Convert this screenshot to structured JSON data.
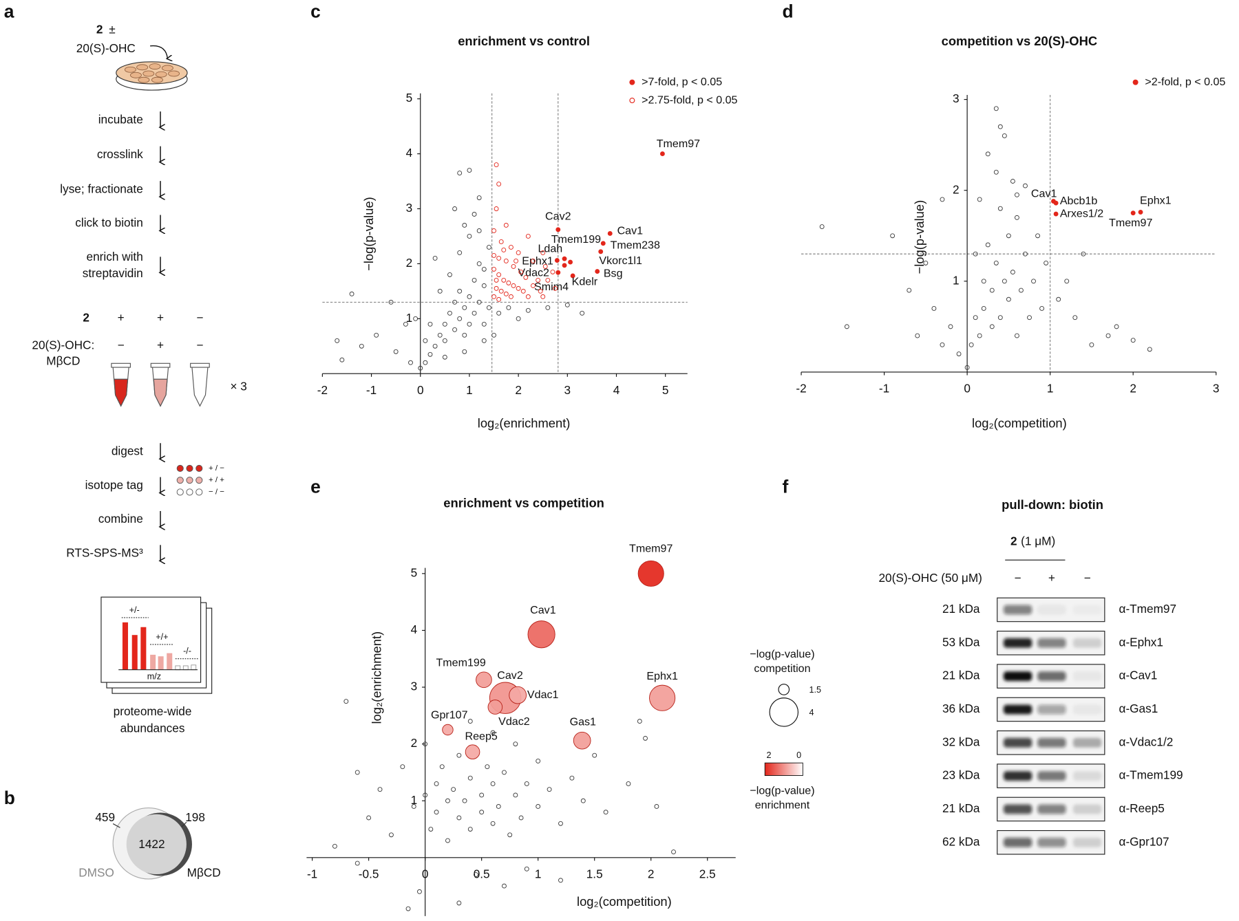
{
  "panel_labels": [
    "a",
    "b",
    "c",
    "d",
    "e",
    "f"
  ],
  "workflow": {
    "compound": "2",
    "plus_minus": "±",
    "treatment": "20(S)-OHC",
    "steps": [
      "incubate",
      "crosslink",
      "lyse; fractionate",
      "click to biotin",
      "enrich with",
      "streptavidin"
    ],
    "conditions": {
      "rows": [
        {
          "label": "2",
          "signs": [
            "+",
            "+",
            "−"
          ]
        },
        {
          "label": [
            "20(S)-OHC:",
            "MβCD"
          ],
          "signs": [
            "−",
            "+",
            "−"
          ]
        }
      ],
      "replicates": "× 3"
    },
    "steps2": [
      "digest",
      "isotope tag",
      "combine",
      "RTS-SPS-MS³"
    ],
    "tags": [
      "+ / −",
      "+ / +",
      "− / −"
    ],
    "inset": {
      "groups": [
        "+/-",
        "+/+",
        "-/-"
      ],
      "axis": "m/z"
    },
    "caption": [
      "proteome-wide",
      "abundances"
    ]
  },
  "venn": {
    "left_only": 459,
    "shared": 1422,
    "right_only": 198,
    "left_label": "DMSO",
    "right_label": "MβCD"
  },
  "chart_data": [
    {
      "type": "scatter",
      "title": "enrichment vs control",
      "x_label": "log₂(enrichment)",
      "y_label": "−log(p-value)",
      "xlim": [
        -2,
        5.45
      ],
      "ylim": [
        0,
        5.1
      ],
      "xticks": [
        -2,
        -1,
        0,
        1,
        2,
        3,
        4,
        5
      ],
      "yticks": [
        1,
        2,
        3,
        4,
        5
      ],
      "thresholds": {
        "x": [
          1.46,
          2.81
        ],
        "y": [
          1.3
        ]
      },
      "legend": "top-right",
      "series": [
        {
          "name": ">7-fold, p < 0.05",
          "color": "#e3261b",
          "marker": "filled",
          "x": [
            4.94,
            2.81,
            3.87,
            3.73,
            3.68,
            2.79,
            2.94,
            2.94,
            2.81,
            3.06,
            3.11,
            3.61
          ],
          "values": [
            4.0,
            2.62,
            2.55,
            2.37,
            2.22,
            2.06,
            2.09,
            1.97,
            1.84,
            2.03,
            1.78,
            1.86
          ],
          "labels": [
            "Tmem97",
            "Cav2",
            "Cav1",
            "Tmem238",
            "Vkorc1l1",
            "Tmem199",
            "Ldah",
            "Ephx1",
            "Vdac2",
            "Smim4",
            "Kdelr",
            "Bsg"
          ]
        },
        {
          "name": ">2.75-fold, p < 0.05",
          "color": "#e3261b",
          "marker": "open",
          "x": [
            1.55,
            1.6,
            1.55,
            1.75,
            1.5,
            1.65,
            1.85,
            2.0,
            2.2,
            2.3,
            2.5,
            2.55,
            2.6,
            1.6,
            1.75,
            1.9,
            2.05,
            2.15,
            1.5,
            1.6,
            1.7,
            1.8,
            1.9,
            2.0,
            2.1,
            2.3,
            2.45,
            1.55,
            1.65,
            1.75,
            1.85,
            1.5,
            1.6,
            2.2,
            2.4,
            2.7,
            1.95,
            1.7,
            1.5,
            1.55,
            2.5,
            2.75
          ],
          "values": [
            3.8,
            3.45,
            3.0,
            2.7,
            2.6,
            2.4,
            2.3,
            2.2,
            2.5,
            2.05,
            2.2,
            1.95,
            1.7,
            2.1,
            2.05,
            1.95,
            1.85,
            1.75,
            1.9,
            1.8,
            1.7,
            1.65,
            1.6,
            1.55,
            1.5,
            1.6,
            1.5,
            1.55,
            1.5,
            1.45,
            1.4,
            1.4,
            1.35,
            1.4,
            1.7,
            1.85,
            2.05,
            2.25,
            2.15,
            1.7,
            1.4,
            1.55
          ]
        },
        {
          "color": "#3a3a3a",
          "marker": "open",
          "x": [
            -1.7,
            -1.6,
            -1.4,
            -1.2,
            -0.9,
            -0.6,
            -0.5,
            -0.3,
            -0.2,
            0.0,
            0.1,
            0.2,
            0.3,
            0.4,
            0.5,
            0.5,
            0.6,
            0.7,
            0.7,
            0.8,
            0.8,
            0.9,
            0.9,
            1.0,
            1.0,
            1.1,
            1.1,
            1.2,
            1.2,
            1.3,
            1.3,
            1.4,
            1.4,
            0.6,
            0.8,
            1.0,
            1.1,
            0.7,
            0.8,
            1.0,
            1.2,
            0.4,
            0.3,
            0.2,
            1.6,
            1.8,
            2.0,
            2.2,
            2.6,
            3.0,
            3.3,
            0.5,
            0.9,
            1.3,
            1.5,
            0.1,
            -0.1,
            1.2,
            0.9,
            1.3
          ],
          "values": [
            0.6,
            0.25,
            1.45,
            0.5,
            0.7,
            1.3,
            0.4,
            0.9,
            0.2,
            0.1,
            0.2,
            0.35,
            0.5,
            0.7,
            0.6,
            0.9,
            1.1,
            0.8,
            1.3,
            1.0,
            1.5,
            1.2,
            0.7,
            1.4,
            0.9,
            1.7,
            1.1,
            1.3,
            2.0,
            1.6,
            0.9,
            1.2,
            2.3,
            1.8,
            2.2,
            2.5,
            2.9,
            3.0,
            3.65,
            3.7,
            3.2,
            1.5,
            2.1,
            0.9,
            1.1,
            1.2,
            1.0,
            1.15,
            1.2,
            1.25,
            1.1,
            0.3,
            0.4,
            0.6,
            0.7,
            0.6,
            1.0,
            2.6,
            2.7,
            1.9
          ]
        }
      ]
    },
    {
      "type": "scatter",
      "title": "competition vs 20(S)-OHC",
      "x_label": "log₂(competition)",
      "y_label": "−log(p-value)",
      "xlim": [
        -2,
        3
      ],
      "ylim": [
        0,
        3.05
      ],
      "xticks": [
        -2,
        -1,
        0,
        1,
        2,
        3
      ],
      "yticks": [
        1,
        2,
        3
      ],
      "thresholds": {
        "x": [
          1.0
        ],
        "y": [
          1.3
        ]
      },
      "legend": "top-right",
      "series": [
        {
          "name": ">2-fold, p < 0.05",
          "color": "#e3261b",
          "marker": "filled",
          "x": [
            1.04,
            1.07,
            1.07,
            2.09,
            2.0
          ],
          "values": [
            1.88,
            1.86,
            1.74,
            1.76,
            1.75
          ],
          "labels": [
            "Cav1",
            "Abcb1b",
            "Arxes1/2",
            "Ephx1",
            "Tmem97"
          ]
        },
        {
          "color": "#3a3a3a",
          "marker": "open",
          "x": [
            -1.75,
            -1.45,
            -0.9,
            -0.7,
            -0.6,
            -0.5,
            -0.4,
            -0.3,
            -0.2,
            -0.1,
            0.0,
            0.05,
            0.1,
            0.15,
            0.2,
            0.2,
            0.25,
            0.3,
            0.3,
            0.35,
            0.4,
            0.4,
            0.45,
            0.5,
            0.5,
            0.55,
            0.6,
            0.6,
            0.65,
            0.7,
            0.75,
            0.8,
            0.85,
            0.9,
            0.95,
            0.35,
            0.4,
            0.45,
            0.35,
            0.55,
            0.6,
            1.2,
            1.4,
            1.3,
            1.5,
            1.7,
            1.8,
            2.0,
            2.2,
            1.1,
            0.15,
            0.1,
            -0.3,
            0.25,
            0.7
          ],
          "values": [
            1.6,
            0.5,
            1.5,
            0.9,
            0.4,
            1.2,
            0.7,
            0.3,
            0.5,
            0.2,
            0.05,
            0.3,
            0.6,
            0.4,
            1.0,
            0.7,
            1.4,
            0.5,
            0.9,
            1.2,
            1.8,
            0.6,
            1.0,
            1.5,
            0.8,
            1.1,
            0.4,
            1.7,
            0.9,
            1.3,
            0.6,
            1.0,
            1.5,
            0.7,
            1.2,
            2.9,
            2.7,
            2.6,
            2.2,
            2.1,
            1.95,
            1.0,
            1.3,
            0.6,
            0.3,
            0.4,
            0.5,
            0.35,
            0.25,
            0.8,
            1.9,
            1.3,
            1.9,
            2.4,
            2.05
          ]
        }
      ]
    },
    {
      "type": "bubble",
      "title": "enrichment vs competition",
      "x_label": "log₂(competition)",
      "y_label": "log₂(enrichment)",
      "xlim": [
        -1.05,
        2.75
      ],
      "ylim": [
        -1.03,
        5.1
      ],
      "xticks": [
        -1,
        -0.5,
        0,
        0.5,
        1,
        1.5,
        2,
        2.5
      ],
      "yticks": [
        1,
        2,
        3,
        4,
        5
      ],
      "colorscale": {
        "low": "#ffffff",
        "high": "#e3261b"
      },
      "size_title": [
        "−log(p-value)",
        "competition"
      ],
      "size_legend": [
        1.5,
        4
      ],
      "colorbar": {
        "ticks": [
          2,
          0
        ]
      },
      "color_title": [
        "−log(p-value)",
        "enrichment"
      ],
      "series": [
        {
          "marker": "bubble",
          "color": "#b8231a",
          "x": [
            2.0,
            1.03,
            0.52,
            0.71,
            0.82,
            0.62,
            1.39,
            2.1,
            0.2,
            0.42
          ],
          "values": [
            5.0,
            3.93,
            3.13,
            2.81,
            2.86,
            2.65,
            2.06,
            2.81,
            2.25,
            1.86
          ],
          "sizes": [
            3.6,
            3.8,
            2.2,
            4.4,
            2.4,
            2.0,
            2.4,
            3.6,
            1.5,
            2.0
          ],
          "color_values": [
            2.0,
            1.4,
            0.9,
            1.0,
            0.8,
            0.9,
            0.9,
            0.9,
            0.8,
            0.8
          ],
          "labels": [
            "Tmem97",
            "Cav1",
            "Tmem199",
            "Cav2",
            "Vdac1",
            "Vdac2",
            "Gas1",
            "Ephx1",
            "Gpr107",
            "Reep5"
          ]
        },
        {
          "color": "#3a3a3a",
          "marker": "open",
          "x": [
            -0.7,
            -0.8,
            -0.6,
            -0.5,
            -0.4,
            -0.3,
            -0.2,
            -0.1,
            -0.05,
            0.0,
            0.05,
            0.1,
            0.1,
            0.15,
            0.2,
            0.2,
            0.25,
            0.3,
            0.3,
            0.35,
            0.4,
            0.4,
            0.45,
            0.5,
            0.5,
            0.55,
            0.6,
            0.6,
            0.65,
            0.7,
            0.75,
            0.8,
            0.85,
            0.9,
            1.0,
            1.0,
            1.1,
            1.2,
            1.3,
            1.4,
            1.6,
            1.8,
            1.9,
            2.05,
            2.2,
            1.2,
            0.3,
            -0.15,
            0.8,
            0.6,
            0.0,
            0.9,
            1.5,
            -0.6,
            0.4,
            0.7,
            1.95
          ],
          "values": [
            2.75,
            0.2,
            -0.1,
            0.7,
            1.2,
            0.4,
            1.6,
            0.9,
            -0.6,
            1.1,
            0.5,
            1.3,
            0.8,
            1.6,
            1.0,
            0.3,
            1.2,
            0.7,
            1.8,
            1.0,
            1.4,
            0.5,
            -0.3,
            1.1,
            0.8,
            1.6,
            0.6,
            1.3,
            0.9,
            1.5,
            0.4,
            1.1,
            0.7,
            1.3,
            0.9,
            1.7,
            1.2,
            0.6,
            1.4,
            1.0,
            0.8,
            1.3,
            2.4,
            0.9,
            0.1,
            -0.4,
            -0.8,
            -0.9,
            2.0,
            2.2,
            2.0,
            -0.2,
            1.8,
            1.5,
            2.4,
            -0.5,
            2.1
          ]
        }
      ]
    }
  ],
  "blot": {
    "title": "pull-down: biotin",
    "compound": "2",
    "dose": "(1 μM)",
    "treatment": "20(S)-OHC (50 μM)",
    "lanes": [
      "−",
      "+",
      "−"
    ],
    "rows": [
      {
        "size": "21 kDa",
        "antibody": "α-Tmem97"
      },
      {
        "size": "53 kDa",
        "antibody": "α-Ephx1"
      },
      {
        "size": "21 kDa",
        "antibody": "α-Cav1"
      },
      {
        "size": "36 kDa",
        "antibody": "α-Gas1"
      },
      {
        "size": "32 kDa",
        "antibody": "α-Vdac1/2"
      },
      {
        "size": "23 kDa",
        "antibody": "α-Tmem199"
      },
      {
        "size": "21 kDa",
        "antibody": "α-Reep5"
      },
      {
        "size": "62 kDa",
        "antibody": "α-Gpr107"
      }
    ]
  }
}
